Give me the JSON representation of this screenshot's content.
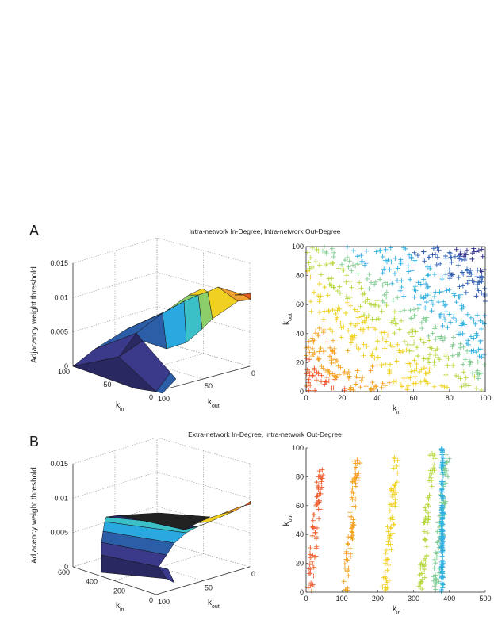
{
  "panels": [
    {
      "letter": "A",
      "title": "Intra-network In-Degree, Intra-network Out-Degree",
      "surface": {
        "zlabel": "Adjacency weight threshold",
        "zticks": [
          "0",
          "0.005",
          "0.01",
          "0.015"
        ],
        "kin_ticks": [
          "100",
          "50",
          "0"
        ],
        "kout_ticks": [
          "100",
          "50",
          "0"
        ],
        "kin_label": "k",
        "kin_sub": "in",
        "kout_label": "k",
        "kout_sub": "out"
      },
      "scatter_xticks": [
        "0",
        "20",
        "40",
        "60",
        "80",
        "100"
      ],
      "scatter_yticks": [
        "0",
        "20",
        "40",
        "60",
        "80",
        "100"
      ]
    },
    {
      "letter": "B",
      "title": "Extra-network In-Degree, Intra-network Out-Degree",
      "surface": {
        "zlabel": "Adjacency weight threshold",
        "zticks": [
          "0",
          "0.005",
          "0.01",
          "0.015"
        ],
        "kin_ticks": [
          "600",
          "400",
          "200",
          "0"
        ],
        "kout_ticks": [
          "100",
          "50",
          "0"
        ],
        "kin_label": "k",
        "kin_sub": "in",
        "kout_label": "k",
        "kout_sub": "out"
      },
      "scatter_xticks": [
        "0",
        "100",
        "200",
        "300",
        "400",
        "500"
      ],
      "scatter_yticks": [
        "0",
        "20",
        "40",
        "60",
        "80",
        "100"
      ]
    }
  ],
  "chart_data": [
    {
      "type": "surface",
      "title": "Intra-network In-Degree, Intra-network Out-Degree",
      "xlabel": "k_in",
      "ylabel": "k_out",
      "zlabel": "Adjacency weight threshold",
      "xlim": [
        0,
        100
      ],
      "ylim": [
        0,
        100
      ],
      "zlim": [
        0,
        0.015
      ],
      "z_at_corners": {
        "kin0_kout0": 0.0105,
        "kin100_kout100": 0.0,
        "kin100_kout0": 0.0,
        "kin0_kout100": 0.0
      }
    },
    {
      "type": "scatter",
      "title": "Intra-network In-Degree, Intra-network Out-Degree",
      "xlabel": "k_in",
      "ylabel": "k_out",
      "xlim": [
        0,
        100
      ],
      "ylim": [
        0,
        100
      ],
      "marker": "+",
      "colors": [
        "#f06030",
        "#f5a020",
        "#f0d020",
        "#b8d840",
        "#80cc90",
        "#30b0e0",
        "#2f5fb5",
        "#2c2c8c"
      ],
      "note": "points colored by threshold bands along anti-diagonals (k_in + k_out)"
    },
    {
      "type": "surface",
      "title": "Extra-network In-Degree, Intra-network Out-Degree",
      "xlabel": "k_in",
      "ylabel": "k_out",
      "zlabel": "Adjacency weight threshold",
      "xlim": [
        0,
        600
      ],
      "ylim": [
        0,
        100
      ],
      "zlim": [
        0,
        0.015
      ]
    },
    {
      "type": "scatter",
      "title": "Extra-network In-Degree, Intra-network Out-Degree",
      "xlabel": "k_in",
      "ylabel": "k_out",
      "xlim": [
        0,
        500
      ],
      "ylim": [
        0,
        100
      ],
      "marker": "+",
      "bands": [
        {
          "color": "#f06030",
          "k_in_center": 30,
          "k_out_max": 85
        },
        {
          "color": "#f5a020",
          "k_in_center": 130,
          "k_out_max": 92
        },
        {
          "color": "#f0d020",
          "k_in_center": 240,
          "k_out_max": 95
        },
        {
          "color": "#b8d840",
          "k_in_center": 340,
          "k_out_max": 97
        },
        {
          "color": "#80cc90",
          "k_in_center": 380,
          "k_out_max": 98
        },
        {
          "color": "#30b0e0",
          "k_in_center": 400,
          "k_out_max": 100
        }
      ]
    }
  ]
}
